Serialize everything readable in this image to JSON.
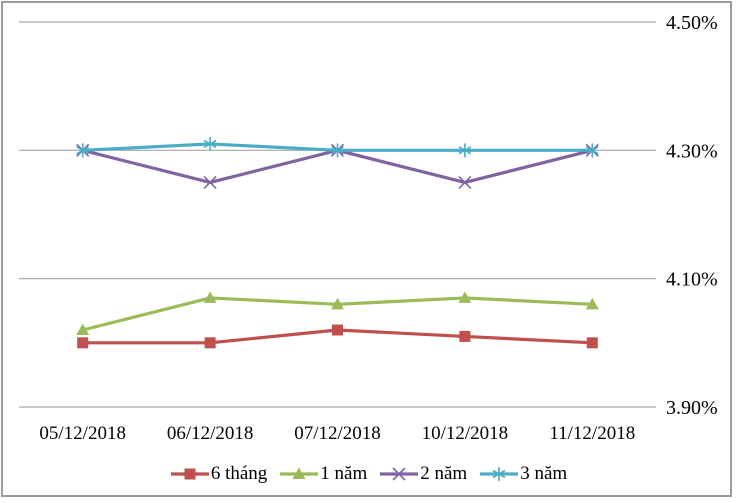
{
  "chart_data": {
    "type": "line",
    "title": "",
    "xlabel": "",
    "ylabel": "",
    "categories": [
      "05/12/2018",
      "06/12/2018",
      "07/12/2018",
      "10/12/2018",
      "11/12/2018"
    ],
    "series": [
      {
        "id": "6-thang",
        "name": "6 tháng",
        "color": "#C0504D",
        "marker": "square",
        "values": [
          4.0,
          4.0,
          4.02,
          4.01,
          4.0
        ]
      },
      {
        "id": "1-nam",
        "name": "1 năm",
        "color": "#9BBB59",
        "marker": "triangle",
        "values": [
          4.02,
          4.07,
          4.06,
          4.07,
          4.06
        ]
      },
      {
        "id": "2-nam",
        "name": "2 năm",
        "color": "#8064A2",
        "marker": "x",
        "values": [
          4.3,
          4.25,
          4.3,
          4.25,
          4.3
        ]
      },
      {
        "id": "3-nam",
        "name": "3 năm",
        "color": "#4BACC6",
        "marker": "asterisk",
        "values": [
          4.3,
          4.31,
          4.3,
          4.3,
          4.3
        ]
      }
    ],
    "ylim": [
      3.9,
      4.5
    ],
    "yticks": [
      3.9,
      4.1,
      4.3,
      4.5
    ],
    "ytick_labels": [
      "3.90%",
      "4.10%",
      "4.30%",
      "4.50%"
    ],
    "ytick_side": "right",
    "grid": true,
    "gridline_color": "#A6A6A6",
    "text_color": "#000000",
    "legend_position": "bottom"
  }
}
